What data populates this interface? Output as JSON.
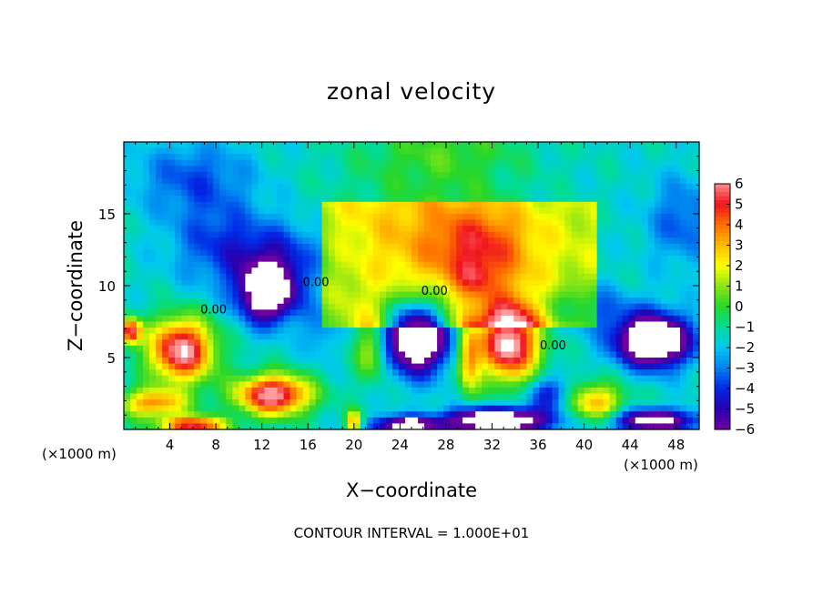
{
  "chart_data": {
    "type": "heatmap",
    "title": "zonal velocity",
    "xlabel": "X−coordinate",
    "ylabel": "Z−coordinate",
    "x_unit_left": "(×1000 m)",
    "x_unit_right": "(×1000 m)",
    "footer": "CONTOUR INTERVAL = 1.000E+01",
    "xlim": [
      0,
      50
    ],
    "ylim": [
      0,
      20
    ],
    "x_ticks": [
      4,
      8,
      12,
      16,
      20,
      24,
      28,
      32,
      36,
      40,
      44,
      48
    ],
    "x_tick_labels": [
      "4",
      "8",
      "12",
      "16",
      "20",
      "24",
      "28",
      "32",
      "36",
      "40",
      "44",
      "48"
    ],
    "y_ticks": [
      5,
      10,
      15
    ],
    "y_tick_labels": [
      "5",
      "10",
      "15"
    ],
    "colorbar": {
      "range": [
        -6,
        6
      ],
      "ticks": [
        6,
        5,
        4,
        3,
        2,
        1,
        0,
        -1,
        -2,
        -3,
        -4,
        -5,
        -6
      ],
      "tick_labels": [
        "6",
        "5",
        "4",
        "3",
        "2",
        "1",
        "0",
        "−1",
        "−2",
        "−3",
        "−4",
        "−5",
        "−6"
      ]
    },
    "contour_labels": [
      {
        "text": "0.00",
        "x": 7.8,
        "z": 8.3
      },
      {
        "text": "0.00",
        "x": 16.7,
        "z": 10.2
      },
      {
        "text": "0.00",
        "x": 27.0,
        "z": 9.6
      },
      {
        "text": "0.00",
        "x": 37.3,
        "z": 5.8
      }
    ],
    "blobs": [
      {
        "x": 12.5,
        "z": 9.5,
        "sx": 2.4,
        "sz": 2.0,
        "amp": -7.5
      },
      {
        "x": 13.5,
        "z": 12.0,
        "sx": 4.5,
        "sz": 2.5,
        "amp": -2.5
      },
      {
        "x": 8.0,
        "z": 13.0,
        "sx": 4.0,
        "sz": 3.0,
        "amp": -2.0
      },
      {
        "x": 5.0,
        "z": 5.5,
        "sx": 2.8,
        "sz": 2.2,
        "amp": 8.0
      },
      {
        "x": 0.6,
        "z": 6.8,
        "sx": 0.9,
        "sz": 0.9,
        "amp": 7.0
      },
      {
        "x": 2.5,
        "z": 1.8,
        "sx": 3.0,
        "sz": 1.0,
        "amp": 5.0
      },
      {
        "x": 13.0,
        "z": 2.4,
        "sx": 3.2,
        "sz": 1.4,
        "amp": 8.0
      },
      {
        "x": 6.0,
        "z": 0.3,
        "sx": 2.8,
        "sz": 0.6,
        "amp": 7.0
      },
      {
        "x": 25.5,
        "z": 6.5,
        "sx": 2.6,
        "sz": 2.4,
        "amp": -9.0
      },
      {
        "x": 21.5,
        "z": 5.5,
        "sx": 1.4,
        "sz": 2.0,
        "amp": 3.0
      },
      {
        "x": 33.5,
        "z": 6.0,
        "sx": 2.6,
        "sz": 2.6,
        "amp": 8.5
      },
      {
        "x": 30.0,
        "z": 5.0,
        "sx": 1.0,
        "sz": 2.5,
        "amp": 4.5
      },
      {
        "x": 32.5,
        "z": 0.6,
        "sx": 4.5,
        "sz": 0.9,
        "amp": -8.0
      },
      {
        "x": 24.5,
        "z": 0.3,
        "sx": 3.0,
        "sz": 0.6,
        "amp": -6.0
      },
      {
        "x": 20.0,
        "z": 0.5,
        "sx": 0.7,
        "sz": 0.8,
        "amp": 5.0
      },
      {
        "x": 46.0,
        "z": 6.2,
        "sx": 3.2,
        "sz": 1.8,
        "amp": -8.5
      },
      {
        "x": 46.0,
        "z": 0.6,
        "sx": 4.0,
        "sz": 0.8,
        "amp": -6.0
      },
      {
        "x": 41.0,
        "z": 1.8,
        "sx": 2.5,
        "sz": 1.5,
        "amp": 4.5
      },
      {
        "x": 37.0,
        "z": 2.5,
        "sx": 2.0,
        "sz": 1.2,
        "amp": -3.0
      },
      {
        "x": 31.0,
        "z": 12.5,
        "sx": 4.5,
        "sz": 3.0,
        "amp": 3.0
      },
      {
        "x": 30.5,
        "z": 10.5,
        "sx": 1.5,
        "sz": 1.2,
        "amp": 1.5
      },
      {
        "x": 25.0,
        "z": 14.0,
        "sx": 7.0,
        "sz": 4.5,
        "amp": 1.2
      },
      {
        "x": 28.0,
        "z": 19.5,
        "sx": 7.0,
        "sz": 2.5,
        "amp": 1.5
      },
      {
        "x": 6.0,
        "z": 17.5,
        "sx": 5.0,
        "sz": 2.5,
        "amp": -2.0
      },
      {
        "x": 48.5,
        "z": 14.5,
        "sx": 3.0,
        "sz": 3.0,
        "amp": -2.0
      },
      {
        "x": 40.0,
        "z": 8.5,
        "sx": 4.0,
        "sz": 1.5,
        "amp": -2.0
      },
      {
        "x": 17.0,
        "z": 7.0,
        "sx": 1.5,
        "sz": 2.0,
        "amp": -1.5
      }
    ]
  }
}
